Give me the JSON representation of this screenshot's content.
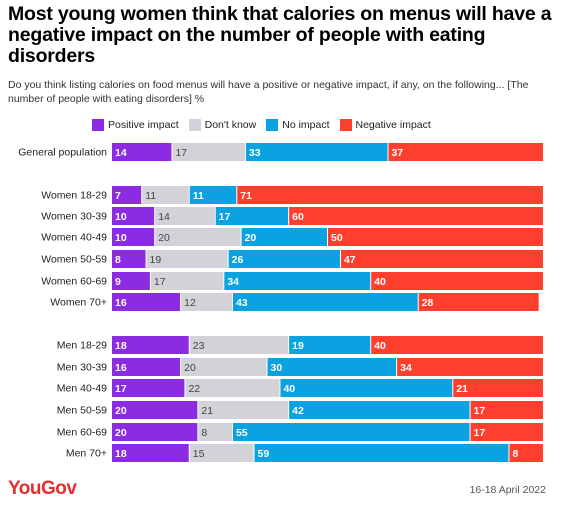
{
  "title": "Most young women think that calories on menus will have a negative impact on the number of people with eating disorders",
  "subtitle": "Do you think listing calories on food menus will have a positive or negative impact, if any, on the following... [The number of people with eating disorders] %",
  "logo": "YouGov",
  "date": "16-18 April 2022",
  "chart_data": {
    "type": "bar",
    "orientation": "horizontal",
    "stacked": true,
    "xlim": [
      0,
      100
    ],
    "legend_position": "top",
    "categories": [
      "General population",
      "Women 18-29",
      "Women 30-39",
      "Women 40-49",
      "Women 50-59",
      "Women 60-69",
      "Women 70+",
      "Men 18-29",
      "Men 30-39",
      "Men 40-49",
      "Men 50-59",
      "Men 60-69",
      "Men 70+"
    ],
    "series": [
      {
        "name": "Positive impact",
        "color": "#8b2be2",
        "label_color": "#ffffff",
        "values": [
          14,
          7,
          10,
          10,
          8,
          9,
          16,
          18,
          16,
          17,
          20,
          20,
          18
        ]
      },
      {
        "name": "Don't know",
        "color": "#d2d2d8",
        "label_color": "#444444",
        "values": [
          17,
          11,
          14,
          20,
          19,
          17,
          12,
          23,
          20,
          22,
          21,
          8,
          15
        ]
      },
      {
        "name": "No impact",
        "color": "#0aa2e0",
        "label_color": "#ffffff",
        "values": [
          33,
          11,
          17,
          20,
          26,
          34,
          43,
          19,
          30,
          40,
          42,
          55,
          59
        ]
      },
      {
        "name": "Negative impact",
        "color": "#ff3f2e",
        "label_color": "#ffffff",
        "values": [
          37,
          71,
          60,
          50,
          47,
          40,
          28,
          40,
          34,
          21,
          17,
          17,
          8
        ]
      }
    ]
  }
}
